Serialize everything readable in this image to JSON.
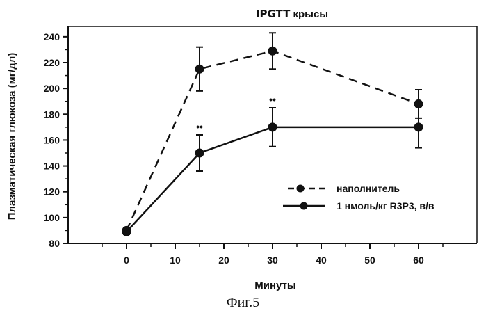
{
  "chart_data": {
    "type": "line",
    "title_bold": "IPGTT",
    "title_rest": " крысы",
    "xlabel": "Минуты",
    "ylabel": "Плазматическая глюкоза (мг/дл)",
    "xlim": [
      -12,
      72
    ],
    "ylim": [
      80,
      248
    ],
    "x_ticks": [
      0,
      10,
      20,
      30,
      40,
      50,
      60
    ],
    "y_ticks": [
      80,
      100,
      120,
      140,
      160,
      180,
      200,
      220,
      240
    ],
    "series": [
      {
        "name": "наполнитель",
        "style": "dashed",
        "points": [
          {
            "x": 0,
            "y": 90,
            "err": 2
          },
          {
            "x": 15,
            "y": 215,
            "err": 17
          },
          {
            "x": 30,
            "y": 229,
            "err": 14
          },
          {
            "x": 60,
            "y": 188,
            "err": 11
          }
        ]
      },
      {
        "name": "1 нмоль/кг R3P3, в/в",
        "style": "solid",
        "points": [
          {
            "x": 0,
            "y": 89,
            "err": 2
          },
          {
            "x": 15,
            "y": 150,
            "err": 14
          },
          {
            "x": 30,
            "y": 170,
            "err": 15
          },
          {
            "x": 60,
            "y": 170,
            "err": 16
          }
        ]
      }
    ],
    "significance_markers": [
      {
        "x": 15,
        "label": "••"
      },
      {
        "x": 30,
        "label": "••"
      }
    ],
    "legend_position": "center-right",
    "grid": false
  },
  "caption": "Фиг.5",
  "colors": {
    "ink": "#111111",
    "background": "#ffffff"
  }
}
